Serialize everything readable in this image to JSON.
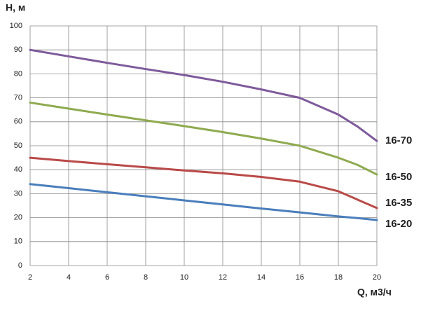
{
  "chart_data": {
    "type": "line",
    "y_label": "H, м",
    "x_label": "Q, м3/ч",
    "x": [
      2,
      4,
      6,
      8,
      10,
      12,
      14,
      16,
      18,
      19,
      20
    ],
    "series": [
      {
        "name": "16-70",
        "color": "#7e5a9b",
        "values": [
          90,
          87.3,
          84.6,
          82,
          79.5,
          76.7,
          73.5,
          70,
          63,
          58,
          52
        ]
      },
      {
        "name": "16-50",
        "color": "#8eaa4f",
        "values": [
          68,
          65.5,
          63,
          60.6,
          58.2,
          55.7,
          53,
          50,
          45,
          42,
          38
        ]
      },
      {
        "name": "16-35",
        "color": "#b94a48",
        "values": [
          45,
          43.6,
          42.3,
          41,
          39.7,
          38.5,
          37,
          35,
          31,
          27.5,
          24
        ]
      },
      {
        "name": "16-20",
        "color": "#4a7ebb",
        "values": [
          34,
          32.3,
          30.6,
          28.9,
          27.2,
          25.5,
          23.8,
          22.2,
          20.5,
          19.8,
          19
        ]
      }
    ],
    "xlim": [
      2,
      20
    ],
    "xticks": [
      2,
      4,
      6,
      8,
      10,
      12,
      14,
      16,
      18,
      20
    ],
    "ylim": [
      0,
      100
    ],
    "yticks": [
      0,
      10,
      20,
      30,
      40,
      50,
      60,
      70,
      80,
      90,
      100
    ],
    "grid": true
  }
}
